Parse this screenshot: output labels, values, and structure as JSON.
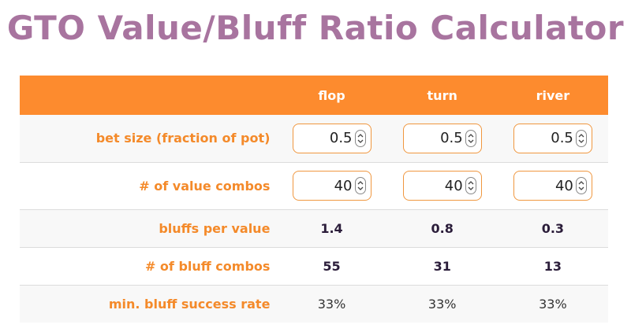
{
  "title": "GTO Value/Bluff Ratio Calculator",
  "columns": [
    "flop",
    "turn",
    "river"
  ],
  "rows": {
    "bet_size": {
      "label": "bet size (fraction of pot)",
      "values": [
        "0.5",
        "0.5",
        "0.5"
      ]
    },
    "value_combos": {
      "label": "# of value combos",
      "values": [
        "40",
        "40",
        "40"
      ]
    },
    "bluffs_per_value": {
      "label": "bluffs per value",
      "values": [
        "1.4",
        "0.8",
        "0.3"
      ]
    },
    "bluff_combos": {
      "label": "# of bluff combos",
      "values": [
        "55",
        "31",
        "13"
      ]
    },
    "min_bluff_success": {
      "label": "min. bluff success rate",
      "values": [
        "33%",
        "33%",
        "33%"
      ]
    }
  },
  "colors": {
    "title": "#a8749f",
    "header_bg": "#fd8b2e",
    "label": "#f48a2a",
    "value": "#2b1d3a"
  },
  "icons": {
    "stepper": "up-down-chevron-icon"
  }
}
